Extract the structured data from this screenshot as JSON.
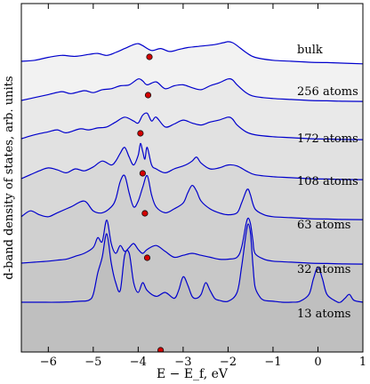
{
  "chart_data": {
    "type": "line",
    "xlabel": "E − E_f, eV",
    "ylabel": "d-band density of states, arb. units",
    "xlim": [
      -6.6,
      1.0
    ],
    "xticks": [
      -6,
      -5,
      -4,
      -3,
      -2,
      -1,
      0,
      1
    ],
    "xtick_labels": [
      "−6",
      "−5",
      "−4",
      "−3",
      "−2",
      "−1",
      "0",
      "1"
    ],
    "yticks_shown": false,
    "colors": {
      "curve": "#0000cc",
      "dot": "#d40000"
    },
    "series": [
      {
        "name": "bulk",
        "d_band_center": -3.75,
        "x": [
          -6.6,
          -6.3,
          -6.0,
          -5.7,
          -5.4,
          -5.1,
          -4.9,
          -4.7,
          -4.5,
          -4.3,
          -4.1,
          -4.0,
          -3.9,
          -3.7,
          -3.5,
          -3.3,
          -3.1,
          -2.9,
          -2.7,
          -2.5,
          -2.3,
          -2.1,
          -2.0,
          -1.9,
          -1.8,
          -1.6,
          -1.4,
          -1.0,
          -0.6,
          -0.2,
          0.2,
          0.6,
          1.0
        ],
        "y": [
          0.05,
          0.1,
          0.25,
          0.35,
          0.3,
          0.4,
          0.45,
          0.35,
          0.5,
          0.7,
          0.9,
          0.95,
          0.85,
          0.6,
          0.7,
          0.55,
          0.65,
          0.75,
          0.8,
          0.85,
          0.9,
          1.0,
          1.05,
          1.0,
          0.85,
          0.5,
          0.25,
          0.1,
          0.05,
          0.0,
          -0.02,
          -0.05,
          -0.08
        ]
      },
      {
        "name": "256 atoms",
        "d_band_center": -3.78,
        "x": [
          -6.6,
          -6.3,
          -6.0,
          -5.7,
          -5.5,
          -5.2,
          -5.0,
          -4.8,
          -4.6,
          -4.4,
          -4.2,
          -4.0,
          -3.9,
          -3.8,
          -3.6,
          -3.4,
          -3.2,
          -3.0,
          -2.8,
          -2.6,
          -2.4,
          -2.2,
          -2.0,
          -1.9,
          -1.8,
          -1.6,
          -1.4,
          -1.0,
          -0.6,
          -0.2,
          0.2,
          0.6,
          1.0
        ],
        "y": [
          0.0,
          0.15,
          0.3,
          0.45,
          0.35,
          0.5,
          0.4,
          0.55,
          0.6,
          0.75,
          0.8,
          1.1,
          1.0,
          0.8,
          0.95,
          0.6,
          0.75,
          0.8,
          0.65,
          0.55,
          0.75,
          0.9,
          1.1,
          1.05,
          0.8,
          0.4,
          0.2,
          0.1,
          0.05,
          0.0,
          -0.02,
          -0.04,
          -0.05
        ]
      },
      {
        "name": "172 atoms",
        "d_band_center": -3.95,
        "x": [
          -6.6,
          -6.3,
          -6.0,
          -5.8,
          -5.6,
          -5.3,
          -5.1,
          -4.9,
          -4.7,
          -4.5,
          -4.3,
          -4.1,
          -4.0,
          -3.9,
          -3.8,
          -3.7,
          -3.6,
          -3.4,
          -3.2,
          -3.0,
          -2.8,
          -2.6,
          -2.4,
          -2.2,
          -2.0,
          -1.9,
          -1.8,
          -1.6,
          -1.4,
          -1.0,
          -0.6,
          -0.2,
          0.2,
          0.6,
          1.0
        ],
        "y": [
          0.0,
          0.2,
          0.35,
          0.45,
          0.3,
          0.5,
          0.45,
          0.55,
          0.6,
          0.85,
          1.1,
          0.9,
          0.8,
          1.2,
          1.3,
          0.9,
          1.1,
          0.6,
          0.75,
          0.95,
          0.8,
          0.7,
          0.85,
          0.95,
          1.1,
          1.0,
          0.7,
          0.35,
          0.2,
          0.1,
          0.05,
          0.0,
          -0.02,
          -0.04,
          -0.05
        ]
      },
      {
        "name": "108 atoms",
        "d_band_center": -3.9,
        "x": [
          -6.6,
          -6.4,
          -6.2,
          -6.0,
          -5.8,
          -5.6,
          -5.4,
          -5.2,
          -5.0,
          -4.8,
          -4.6,
          -4.5,
          -4.4,
          -4.3,
          -4.2,
          -4.1,
          -4.0,
          -3.95,
          -3.9,
          -3.85,
          -3.8,
          -3.7,
          -3.6,
          -3.4,
          -3.2,
          -3.0,
          -2.9,
          -2.8,
          -2.7,
          -2.6,
          -2.4,
          -2.2,
          -2.0,
          -1.8,
          -1.6,
          -1.4,
          -1.0,
          -0.6,
          -0.2,
          0.2,
          0.6,
          1.0
        ],
        "y": [
          0.0,
          0.2,
          0.4,
          0.55,
          0.45,
          0.3,
          0.5,
          0.4,
          0.6,
          0.9,
          0.7,
          0.9,
          1.3,
          1.6,
          1.1,
          0.7,
          1.2,
          1.8,
          1.4,
          1.0,
          1.6,
          0.7,
          0.5,
          0.3,
          0.5,
          0.65,
          0.75,
          0.9,
          1.1,
          0.8,
          0.5,
          0.55,
          0.7,
          0.65,
          0.4,
          0.2,
          0.1,
          0.05,
          0.0,
          -0.02,
          -0.04,
          -0.05
        ]
      },
      {
        "name": "63 atoms",
        "d_band_center": -3.85,
        "x": [
          -6.6,
          -6.4,
          -6.2,
          -6.0,
          -5.8,
          -5.5,
          -5.2,
          -5.0,
          -4.8,
          -4.6,
          -4.5,
          -4.4,
          -4.3,
          -4.2,
          -4.1,
          -4.0,
          -3.9,
          -3.8,
          -3.7,
          -3.6,
          -3.4,
          -3.2,
          -3.0,
          -2.9,
          -2.8,
          -2.7,
          -2.6,
          -2.4,
          -2.2,
          -2.0,
          -1.8,
          -1.7,
          -1.6,
          -1.55,
          -1.5,
          -1.4,
          -1.2,
          -1.0,
          -0.6,
          -0.2,
          0.2,
          0.6,
          1.0
        ],
        "y": [
          0.1,
          0.4,
          0.2,
          0.1,
          0.3,
          0.6,
          0.9,
          0.4,
          0.3,
          0.6,
          1.0,
          1.9,
          2.2,
          1.3,
          0.6,
          0.9,
          1.6,
          2.2,
          1.2,
          0.6,
          0.3,
          0.5,
          0.8,
          1.3,
          1.7,
          1.4,
          0.9,
          0.5,
          0.3,
          0.2,
          0.3,
          0.8,
          1.4,
          1.5,
          1.2,
          0.5,
          0.2,
          0.1,
          0.05,
          0.0,
          -0.02,
          -0.04,
          -0.05
        ]
      },
      {
        "name": "32 atoms",
        "d_band_center": -3.8,
        "x": [
          -6.6,
          -6.3,
          -6.0,
          -5.8,
          -5.6,
          -5.4,
          -5.2,
          -5.0,
          -4.9,
          -4.8,
          -4.7,
          -4.6,
          -4.5,
          -4.4,
          -4.3,
          -4.2,
          -4.1,
          -4.0,
          -3.9,
          -3.8,
          -3.6,
          -3.4,
          -3.2,
          -3.0,
          -2.8,
          -2.6,
          -2.4,
          -2.2,
          -2.0,
          -1.8,
          -1.7,
          -1.6,
          -1.55,
          -1.5,
          -1.45,
          -1.4,
          -1.2,
          -1.0,
          -0.6,
          -0.2,
          0.2,
          0.6,
          1.0
        ],
        "y": [
          0.0,
          0.05,
          0.1,
          0.15,
          0.2,
          0.35,
          0.5,
          0.8,
          1.3,
          1.1,
          2.2,
          1.0,
          0.5,
          0.9,
          0.6,
          0.8,
          1.0,
          0.7,
          0.5,
          0.7,
          0.9,
          0.6,
          0.3,
          0.4,
          0.5,
          0.4,
          0.3,
          0.2,
          0.2,
          0.3,
          0.8,
          2.0,
          2.3,
          2.0,
          1.2,
          0.5,
          0.2,
          0.1,
          0.05,
          0.0,
          -0.02,
          -0.04,
          -0.05
        ]
      },
      {
        "name": "13 atoms",
        "d_band_center": -3.5,
        "x": [
          -6.6,
          -6.2,
          -5.8,
          -5.5,
          -5.3,
          -5.1,
          -5.0,
          -4.9,
          -4.8,
          -4.7,
          -4.6,
          -4.5,
          -4.4,
          -4.3,
          -4.2,
          -4.1,
          -4.0,
          -3.9,
          -3.8,
          -3.6,
          -3.4,
          -3.2,
          -3.1,
          -3.0,
          -2.9,
          -2.8,
          -2.7,
          -2.6,
          -2.5,
          -2.4,
          -2.3,
          -2.2,
          -2.0,
          -1.8,
          -1.7,
          -1.6,
          -1.55,
          -1.5,
          -1.45,
          -1.4,
          -1.3,
          -1.2,
          -1.0,
          -0.8,
          -0.6,
          -0.4,
          -0.2,
          -0.1,
          0.0,
          0.1,
          0.2,
          0.4,
          0.5,
          0.6,
          0.7,
          0.8,
          1.0
        ],
        "y": [
          0.0,
          0.0,
          0.0,
          0.02,
          0.05,
          0.1,
          0.4,
          1.5,
          2.3,
          3.5,
          2.0,
          1.0,
          0.6,
          2.4,
          2.5,
          1.0,
          0.5,
          1.0,
          0.6,
          0.3,
          0.5,
          0.2,
          0.6,
          1.3,
          0.9,
          0.3,
          0.2,
          0.4,
          1.0,
          0.6,
          0.2,
          0.1,
          0.05,
          0.5,
          1.8,
          3.5,
          4.0,
          3.5,
          2.0,
          0.8,
          0.3,
          0.1,
          0.05,
          0.0,
          0.0,
          0.05,
          0.4,
          1.2,
          1.8,
          1.2,
          0.4,
          0.05,
          0.0,
          0.2,
          0.4,
          0.1,
          0.0
        ]
      }
    ]
  }
}
